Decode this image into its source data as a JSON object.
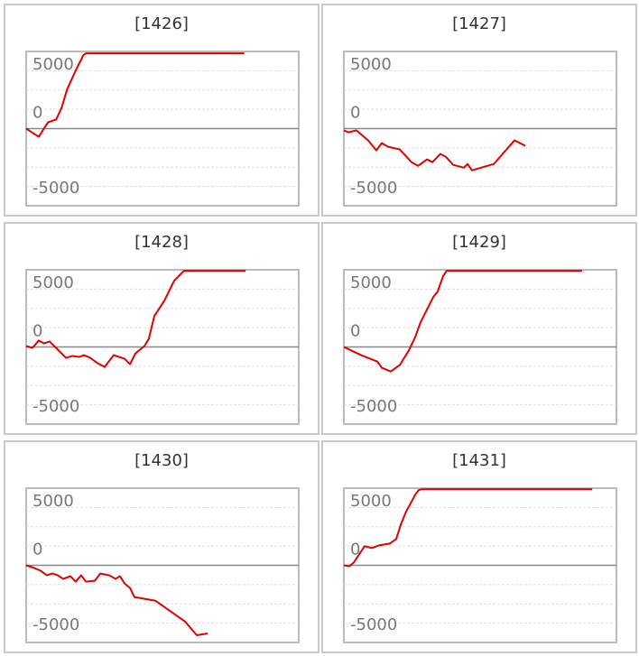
{
  "chart_data": [
    {
      "type": "line",
      "title": "[1426]",
      "color": "#e00000",
      "x": [
        0,
        4.6,
        8,
        11,
        13,
        15,
        18,
        21,
        22,
        80
      ],
      "values": [
        0,
        -850,
        650,
        940,
        2160,
        4050,
        5930,
        7620,
        7800,
        7800
      ],
      "xlim": [
        0,
        100
      ],
      "ylim": [
        -8000,
        8000
      ],
      "yticks": [
        -5000,
        0,
        5000
      ],
      "minor_yticks": [
        -6000,
        -4000,
        -2000,
        2000,
        4000,
        6000
      ]
    },
    {
      "type": "line",
      "title": "[1427]",
      "color": "#e00000",
      "x": [
        0,
        1.7,
        4.6,
        8.9,
        11.9,
        13.9,
        16.2,
        20.5,
        24.8,
        27.2,
        30.5,
        32.5,
        35.4,
        37.4,
        40.1,
        44,
        45.4,
        47,
        55,
        62.6,
        66.6
      ],
      "values": [
        -190,
        -380,
        -190,
        -1220,
        -2260,
        -1510,
        -1880,
        -2160,
        -3480,
        -3860,
        -3200,
        -3480,
        -2630,
        -2920,
        -3760,
        -4050,
        -3670,
        -4330,
        -3670,
        -1220,
        -1790
      ],
      "xlim": [
        0,
        100
      ],
      "ylim": [
        -8000,
        8000
      ],
      "yticks": [
        -5000,
        0,
        5000
      ],
      "minor_yticks": [
        -6000,
        -4000,
        -2000,
        2000,
        4000,
        6000
      ]
    },
    {
      "type": "line",
      "title": "[1428]",
      "color": "#e00000",
      "x": [
        0,
        2.3,
        4.6,
        6.6,
        8.6,
        11.3,
        14.6,
        16.9,
        19.5,
        21.2,
        23.5,
        26.2,
        28.8,
        32.1,
        36.1,
        38.1,
        40.1,
        43.4,
        45,
        47,
        50.7,
        54.3,
        57.9,
        80.5
      ],
      "values": [
        94,
        -94,
        660,
        376,
        564,
        -188,
        -1130,
        -940,
        -1035,
        -847,
        -1130,
        -1690,
        -2070,
        -847,
        -1220,
        -1790,
        -660,
        94,
        850,
        3200,
        4800,
        6870,
        7900,
        7900
      ],
      "xlim": [
        0,
        100
      ],
      "ylim": [
        -8000,
        8000
      ],
      "yticks": [
        -5000,
        0,
        5000
      ],
      "minor_yticks": [
        -6000,
        -4000,
        -2000,
        2000,
        4000,
        6000
      ]
    },
    {
      "type": "line",
      "title": "[1429]",
      "color": "#e00000",
      "x": [
        0,
        6.3,
        12.3,
        13.9,
        17.2,
        20.5,
        23.8,
        26.2,
        28.1,
        30.8,
        32.8,
        34.4,
        36.4,
        37.7,
        87.4
      ],
      "values": [
        0,
        -850,
        -1510,
        -2160,
        -2540,
        -1880,
        -380,
        1035,
        2540,
        4050,
        5180,
        5740,
        7340,
        7900,
        7900
      ],
      "xlim": [
        0,
        100
      ],
      "ylim": [
        -8000,
        8000
      ],
      "yticks": [
        -5000,
        0,
        5000
      ],
      "minor_yticks": [
        -6000,
        -4000,
        -2000,
        2000,
        4000,
        6000
      ]
    },
    {
      "type": "line",
      "title": "[1430]",
      "color": "#e00000",
      "x": [
        0,
        3,
        5.3,
        7.6,
        9.6,
        11.6,
        13.6,
        16.2,
        18.2,
        20.2,
        21.9,
        25.2,
        27.2,
        30.5,
        32.8,
        34.4,
        36.1,
        38.1,
        39.7,
        47.4,
        58.3,
        62.6,
        66.6
      ],
      "values": [
        0,
        -280,
        -560,
        -1035,
        -850,
        -1035,
        -1410,
        -1130,
        -1690,
        -1035,
        -1690,
        -1600,
        -850,
        -1035,
        -1410,
        -1130,
        -1880,
        -2350,
        -3290,
        -3670,
        -5830,
        -7250,
        -7060
      ],
      "xlim": [
        0,
        100
      ],
      "ylim": [
        -8000,
        8000
      ],
      "yticks": [
        -5000,
        0,
        5000
      ],
      "minor_yticks": [
        -6000,
        -4000,
        -2000,
        2000,
        4000,
        6000
      ]
    },
    {
      "type": "line",
      "title": "[1431]",
      "color": "#e00000",
      "x": [
        0,
        2,
        3.6,
        5.6,
        7.6,
        10.3,
        12.9,
        16.9,
        19.2,
        20.9,
        22.8,
        24.8,
        26.2,
        27.5,
        28.8,
        91.1
      ],
      "values": [
        0,
        -94,
        280,
        1130,
        1980,
        1790,
        2070,
        2260,
        2730,
        4230,
        5550,
        6590,
        7340,
        7810,
        7900,
        7900
      ],
      "xlim": [
        0,
        100
      ],
      "ylim": [
        -8000,
        8000
      ],
      "yticks": [
        -5000,
        0,
        5000
      ],
      "minor_yticks": [
        -6000,
        -4000,
        -2000,
        2000,
        4000,
        6000
      ]
    }
  ]
}
